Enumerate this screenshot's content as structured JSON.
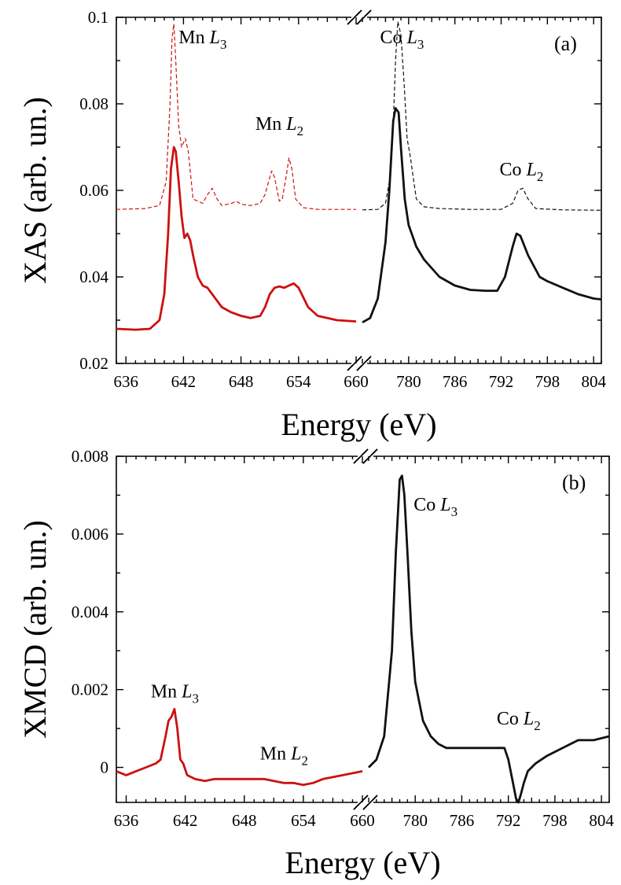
{
  "chart_data": [
    {
      "type": "line",
      "panel": "(a)",
      "ylabel": "XAS (arb. un.)",
      "xlabel": "Energy (eV)",
      "ylim": [
        0.02,
        0.1
      ],
      "yticks": [
        "0.02",
        "0.04",
        "0.06",
        "0.08",
        "0.1"
      ],
      "ytick_values": [
        0.02,
        0.04,
        0.06,
        0.08,
        0.1
      ],
      "broken_x_axis": true,
      "x_segments": [
        {
          "xlim": [
            635,
            660
          ],
          "ticks": [
            "636",
            "642",
            "648",
            "654",
            "660"
          ],
          "tick_values": [
            636,
            642,
            648,
            654,
            660
          ]
        },
        {
          "xlim": [
            774,
            805
          ],
          "ticks": [
            "780",
            "786",
            "792",
            "798",
            "804"
          ],
          "tick_values": [
            780,
            786,
            792,
            798,
            804
          ]
        }
      ],
      "annotations": [
        {
          "main": "Mn ",
          "sub_italic": "L",
          "sub_index": "3",
          "x": 641.5,
          "y": 0.094,
          "segment": 0
        },
        {
          "main": "Mn ",
          "sub_italic": "L",
          "sub_index": "2",
          "x": 649.5,
          "y": 0.074,
          "segment": 0
        },
        {
          "main": "Co ",
          "sub_italic": "L",
          "sub_index": "3",
          "x": 776.3,
          "y": 0.094,
          "segment": 1
        },
        {
          "main": "Co ",
          "sub_italic": "L",
          "sub_index": "2",
          "x": 791.8,
          "y": 0.0635,
          "segment": 1
        }
      ],
      "series": [
        {
          "name": "Mn XAS dashed",
          "color": "#cc1111",
          "style": "dashed",
          "segment": 0,
          "x": [
            635,
            638,
            639.5,
            640.2,
            640.6,
            640.8,
            641.0,
            641.2,
            641.5,
            641.8,
            642.0,
            642.2,
            642.5,
            643.0,
            644.0,
            644.5,
            645.0,
            645.5,
            646.0,
            647.0,
            647.5,
            648.0,
            649.0,
            650.0,
            650.5,
            651.0,
            651.2,
            651.5,
            652.0,
            652.3,
            652.7,
            653.0,
            653.3,
            653.7,
            654.5,
            656,
            660
          ],
          "y": [
            0.0556,
            0.0558,
            0.0565,
            0.062,
            0.08,
            0.095,
            0.0985,
            0.09,
            0.075,
            0.07,
            0.071,
            0.072,
            0.069,
            0.058,
            0.057,
            0.059,
            0.0605,
            0.058,
            0.0565,
            0.057,
            0.0575,
            0.0568,
            0.0565,
            0.057,
            0.059,
            0.063,
            0.0645,
            0.063,
            0.0575,
            0.058,
            0.063,
            0.0675,
            0.065,
            0.058,
            0.056,
            0.0556,
            0.0556
          ]
        },
        {
          "name": "Mn XAS solid",
          "color": "#cc1111",
          "style": "solid",
          "segment": 0,
          "x": [
            635,
            637,
            638.5,
            639.5,
            640.0,
            640.4,
            640.7,
            641.0,
            641.2,
            641.5,
            641.8,
            642.1,
            642.4,
            642.7,
            643.0,
            643.5,
            644.0,
            644.5,
            645.0,
            646.0,
            647.0,
            648.0,
            649.0,
            650.0,
            650.5,
            651.0,
            651.5,
            652.0,
            652.5,
            653.0,
            653.5,
            654.0,
            655.0,
            656.0,
            658.0,
            660
          ],
          "y": [
            0.028,
            0.0278,
            0.028,
            0.03,
            0.036,
            0.05,
            0.065,
            0.07,
            0.069,
            0.062,
            0.054,
            0.049,
            0.05,
            0.0485,
            0.045,
            0.04,
            0.038,
            0.0375,
            0.036,
            0.033,
            0.0318,
            0.031,
            0.0305,
            0.031,
            0.033,
            0.036,
            0.0375,
            0.0378,
            0.0375,
            0.038,
            0.0385,
            0.0375,
            0.033,
            0.031,
            0.03,
            0.0297
          ]
        },
        {
          "name": "Co XAS dashed",
          "color": "#111111",
          "style": "dashed",
          "segment": 1,
          "x": [
            774,
            776,
            777.0,
            777.5,
            778.0,
            778.3,
            778.6,
            779.0,
            779.4,
            779.8,
            780.2,
            780.6,
            781.0,
            782.0,
            784.0,
            788,
            792,
            793.5,
            794.2,
            794.8,
            795.5,
            796.5,
            800,
            805
          ],
          "y": [
            0.0555,
            0.0556,
            0.057,
            0.062,
            0.075,
            0.09,
            0.099,
            0.096,
            0.085,
            0.072,
            0.068,
            0.063,
            0.058,
            0.0562,
            0.0558,
            0.0556,
            0.0556,
            0.057,
            0.06,
            0.0605,
            0.058,
            0.0558,
            0.0555,
            0.0554
          ]
        },
        {
          "name": "Co XAS solid",
          "color": "#111111",
          "style": "solid",
          "segment": 1,
          "x": [
            774,
            775,
            776,
            777,
            777.5,
            778,
            778.3,
            778.7,
            779.0,
            779.5,
            780.0,
            781.0,
            782.0,
            784.0,
            786.0,
            788.0,
            790.0,
            791.5,
            792.5,
            793.5,
            794.0,
            794.5,
            795.5,
            797.0,
            798.0,
            800.0,
            802.0,
            804.0,
            805
          ],
          "y": [
            0.0295,
            0.0305,
            0.035,
            0.048,
            0.06,
            0.076,
            0.079,
            0.078,
            0.07,
            0.058,
            0.052,
            0.047,
            0.044,
            0.04,
            0.038,
            0.037,
            0.0368,
            0.0368,
            0.04,
            0.047,
            0.05,
            0.0495,
            0.045,
            0.04,
            0.039,
            0.0375,
            0.036,
            0.035,
            0.0348
          ]
        }
      ]
    },
    {
      "type": "line",
      "panel": "(b)",
      "ylabel": "XMCD (arb. un.)",
      "xlabel": "Energy (eV)",
      "ylim": [
        -0.0009,
        0.008
      ],
      "yticks": [
        "0",
        "0.002",
        "0.004",
        "0.006",
        "0.008"
      ],
      "ytick_values": [
        0,
        0.002,
        0.004,
        0.006,
        0.008
      ],
      "broken_x_axis": true,
      "x_segments": [
        {
          "xlim": [
            635,
            660
          ],
          "ticks": [
            "636",
            "642",
            "648",
            "654",
            "660"
          ],
          "tick_values": [
            636,
            642,
            648,
            654,
            660
          ]
        },
        {
          "xlim": [
            774,
            805
          ],
          "ticks": [
            "780",
            "786",
            "792",
            "798",
            "804"
          ],
          "tick_values": [
            780,
            786,
            792,
            798,
            804
          ]
        }
      ],
      "annotations": [
        {
          "main": "Mn ",
          "sub_italic": "L",
          "sub_index": "3",
          "x": 638.5,
          "y": 0.0018,
          "segment": 0
        },
        {
          "main": "Mn ",
          "sub_italic": "L",
          "sub_index": "2",
          "x": 649.6,
          "y": 0.0002,
          "segment": 0
        },
        {
          "main": "Co ",
          "sub_italic": "L",
          "sub_index": "3",
          "x": 779.8,
          "y": 0.0066,
          "segment": 1
        },
        {
          "main": "Co ",
          "sub_italic": "L",
          "sub_index": "2",
          "x": 790.5,
          "y": 0.0011,
          "segment": 1
        }
      ],
      "series": [
        {
          "name": "Mn XMCD",
          "color": "#cc1111",
          "style": "solid",
          "segment": 0,
          "x": [
            635,
            636,
            637,
            638,
            639,
            639.5,
            640.0,
            640.3,
            640.6,
            640.9,
            641.2,
            641.5,
            641.8,
            642.2,
            643,
            644,
            645,
            646,
            648,
            650,
            652,
            653,
            654,
            655,
            656,
            658,
            660
          ],
          "y": [
            -0.0001,
            -0.0002,
            -0.0001,
            0.0,
            0.0001,
            0.0002,
            0.0008,
            0.0012,
            0.0013,
            0.0015,
            0.001,
            0.0002,
            0.0001,
            -0.0002,
            -0.0003,
            -0.00035,
            -0.0003,
            -0.0003,
            -0.0003,
            -0.0003,
            -0.0004,
            -0.0004,
            -0.00045,
            -0.0004,
            -0.0003,
            -0.0002,
            -0.0001
          ]
        },
        {
          "name": "Co XMCD",
          "color": "#111111",
          "style": "solid",
          "segment": 1,
          "x": [
            774,
            775,
            776,
            777,
            777.5,
            778.0,
            778.3,
            778.6,
            779.0,
            779.5,
            780.0,
            781.0,
            782.0,
            783.0,
            784.0,
            786.0,
            788.0,
            790.0,
            791.5,
            792.0,
            792.5,
            793.0,
            793.3,
            793.6,
            794.0,
            794.5,
            795.5,
            797.0,
            799.0,
            801.0,
            803.0,
            805.0
          ],
          "y": [
            0.0,
            0.0002,
            0.0008,
            0.003,
            0.0055,
            0.0074,
            0.0075,
            0.007,
            0.0055,
            0.0035,
            0.0022,
            0.0012,
            0.0008,
            0.0006,
            0.0005,
            0.0005,
            0.0005,
            0.0005,
            0.0005,
            0.0002,
            -0.0003,
            -0.0008,
            -0.0009,
            -0.0007,
            -0.0004,
            -0.0001,
            0.0001,
            0.0003,
            0.0005,
            0.0007,
            0.0007,
            0.0008
          ]
        }
      ]
    }
  ]
}
